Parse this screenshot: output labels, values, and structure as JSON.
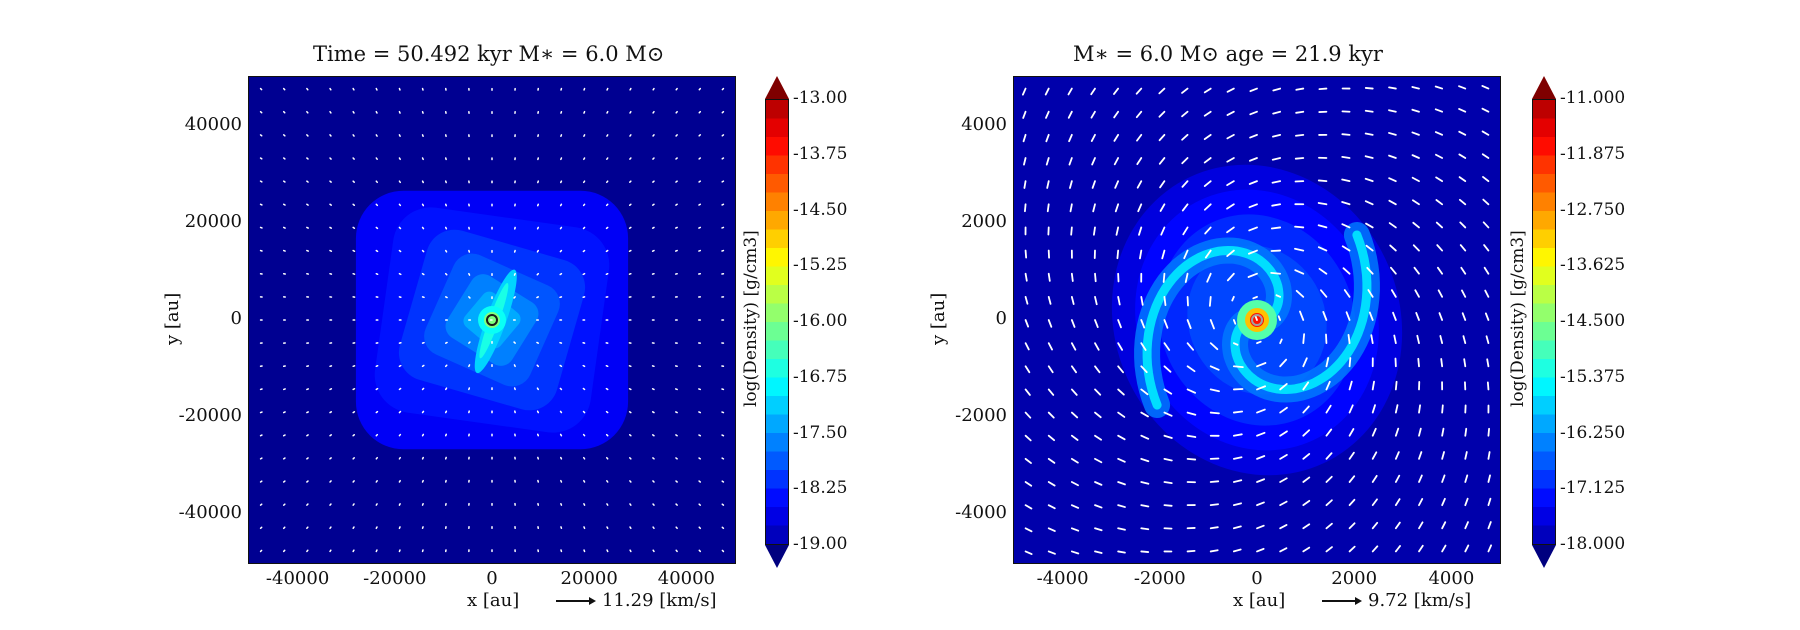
{
  "chart_data": [
    {
      "type": "heatmap",
      "title": "Time = 50.492 kyr    M$_*$ = 6.0 M$_\\odot$",
      "title_display": "Time = 50.492 kyr    M∗ = 6.0 M⊙",
      "xlabel": "x [au]",
      "ylabel": "y [au]",
      "xlim": [
        -50000,
        50000
      ],
      "ylim": [
        -50000,
        50000
      ],
      "xticks": [
        -40000,
        -20000,
        0,
        20000,
        40000
      ],
      "yticks": [
        40000,
        20000,
        0,
        -20000,
        -40000
      ],
      "xtick_labels": [
        "-40000",
        "-20000",
        "0",
        "20000",
        "40000"
      ],
      "ytick_labels": [
        "40000",
        "20000",
        "0",
        "-20000",
        "-40000"
      ],
      "quiver_key": "11.29 [km/s]",
      "colorbar": {
        "label": "log(Density) [g/cm3]",
        "range": [
          -19.0,
          -13.0
        ],
        "extend": "both",
        "ticks": [
          "-13.00",
          "-13.75",
          "-14.50",
          "-15.25",
          "-16.00",
          "-16.75",
          "-17.50",
          "-18.25",
          "-19.00"
        ],
        "colormap": "jet"
      },
      "features": {
        "background_logrho": -18.9,
        "envelope_logrho": -18.3,
        "envelope_extent_au": 28000,
        "central_peak_logrho": -16.0,
        "elongated_structure_angle_deg": 20,
        "sink_at": [
          0,
          0
        ]
      }
    },
    {
      "type": "heatmap",
      "title": "M$_*$ = 6.0 M$_\\odot$          age = 21.9 kyr",
      "title_display": "M∗ = 6.0 M⊙          age = 21.9 kyr",
      "xlabel": "x [au]",
      "ylabel": "y [au]",
      "xlim": [
        -5000,
        5000
      ],
      "ylim": [
        -5000,
        5000
      ],
      "xticks": [
        -4000,
        -2000,
        0,
        2000,
        4000
      ],
      "yticks": [
        4000,
        2000,
        0,
        -2000,
        -4000
      ],
      "xtick_labels": [
        "-4000",
        "-2000",
        "0",
        "2000",
        "4000"
      ],
      "ytick_labels": [
        "4000",
        "2000",
        "0",
        "-2000",
        "-4000"
      ],
      "quiver_key": "9.72 [km/s]",
      "colorbar": {
        "label": "log(Density) [g/cm3]",
        "range": [
          -18.0,
          -11.0
        ],
        "extend": "both",
        "ticks": [
          "-11.000",
          "-11.875",
          "-12.750",
          "-13.625",
          "-14.500",
          "-15.375",
          "-16.250",
          "-17.125",
          "-18.000"
        ],
        "colormap": "jet"
      },
      "features": {
        "background_logrho": -17.7,
        "spiral_arms": 2,
        "spiral_extent_au": 2600,
        "arm_peak_logrho": -15.6,
        "central_peak_logrho": -12.0,
        "sink_at": [
          0,
          0
        ]
      }
    }
  ],
  "colors": {
    "sink_marker_left": "#1a1a1a",
    "sink_marker_right": "#a0a0a0",
    "vector_color": "#ffffff",
    "axis_color": "#111111"
  }
}
